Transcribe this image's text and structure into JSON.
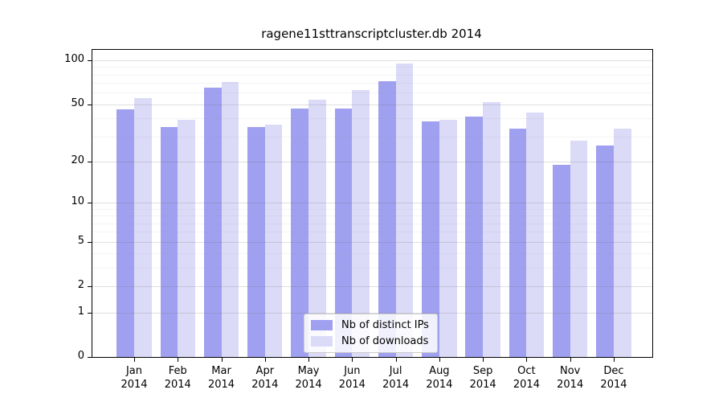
{
  "title": "ragene11sttranscriptcluster.db 2014",
  "chart_data": {
    "type": "bar",
    "title": "ragene11sttranscriptcluster.db 2014",
    "categories": [
      "Jan 2014",
      "Feb 2014",
      "Mar 2014",
      "Apr 2014",
      "May 2014",
      "Jun 2014",
      "Jul 2014",
      "Aug 2014",
      "Sep 2014",
      "Oct 2014",
      "Nov 2014",
      "Dec 2014"
    ],
    "series": [
      {
        "name": "Nb of distinct IPs",
        "color": "#a0a0f0",
        "values": [
          46,
          35,
          65,
          35,
          47,
          47,
          72,
          38,
          41,
          34,
          19,
          26
        ]
      },
      {
        "name": "Nb of downloads",
        "color": "#dbdbf8",
        "values": [
          55,
          39,
          71,
          36,
          54,
          63,
          95,
          39,
          52,
          44,
          28,
          34
        ]
      }
    ],
    "y_axis": {
      "scale": "log1p",
      "max": 118,
      "ticks": [
        100,
        50,
        20,
        10,
        5,
        2,
        1,
        0
      ],
      "minor_ticks": [
        90,
        80,
        70,
        60,
        40,
        30,
        9,
        8,
        7,
        6,
        4,
        3
      ]
    },
    "xlabel": "",
    "ylabel": "",
    "grid": "on",
    "legend_position": "bottom-center"
  }
}
